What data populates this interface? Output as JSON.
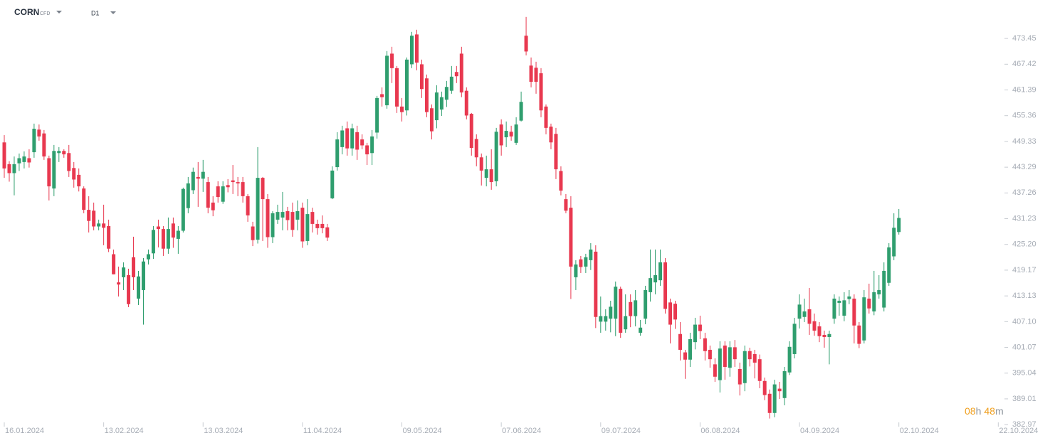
{
  "header": {
    "symbol": "CORN",
    "instrument_type": "CFD",
    "timeframe": "D1"
  },
  "countdown": {
    "hours": "08",
    "hours_unit": "h",
    "minutes": "48",
    "minutes_unit": "m"
  },
  "chart_data": {
    "type": "candlestick",
    "increasing_color": "#2f9e6e",
    "decreasing_color": "#e8384f",
    "xlim": [
      -0.86,
      201.1
    ],
    "xticks": [
      {
        "value": 0,
        "label": "16.01.2024"
      },
      {
        "value": 20,
        "label": "13.02.2024"
      },
      {
        "value": 40,
        "label": "13.03.2024"
      },
      {
        "value": 60,
        "label": "11.04.2024"
      },
      {
        "value": 80,
        "label": "09.05.2024"
      },
      {
        "value": 100,
        "label": "07.06.2024"
      },
      {
        "value": 120,
        "label": "09.07.2024"
      },
      {
        "value": 140,
        "label": "06.08.2024"
      },
      {
        "value": 160,
        "label": "04.09.2024"
      },
      {
        "value": 180,
        "label": "02.10.2024"
      },
      {
        "value": 200,
        "label": "22.10.2024"
      }
    ],
    "ylim": [
      382.5,
      480.8
    ],
    "yticks": [
      {
        "value": 473.45,
        "label": "473.45"
      },
      {
        "value": 467.42,
        "label": "467.42"
      },
      {
        "value": 461.39,
        "label": "461.39"
      },
      {
        "value": 455.36,
        "label": "455.36"
      },
      {
        "value": 449.33,
        "label": "449.33"
      },
      {
        "value": 443.29,
        "label": "443.29"
      },
      {
        "value": 437.26,
        "label": "437.26"
      },
      {
        "value": 431.23,
        "label": "431.23"
      },
      {
        "value": 425.2,
        "label": "425.20"
      },
      {
        "value": 419.17,
        "label": "419.17"
      },
      {
        "value": 413.13,
        "label": "413.13"
      },
      {
        "value": 407.1,
        "label": "407.10"
      },
      {
        "value": 401.07,
        "label": "401.07"
      },
      {
        "value": 395.04,
        "label": "395.04"
      },
      {
        "value": 389.01,
        "label": "389.01"
      },
      {
        "value": 382.97,
        "label": "382.97"
      }
    ],
    "open": [
      449.1,
      444,
      441.9,
      444.2,
      444.5,
      445.4,
      446.8,
      452.1,
      451.2,
      445.4,
      438.3,
      446.6,
      447.1,
      446.6,
      443.1,
      441.5,
      438.3,
      433.3,
      433.1,
      429.4,
      430.1,
      429.5,
      422.9,
      416.3,
      417.5,
      418,
      422.2,
      412.5,
      414.5,
      421.7,
      423.1,
      429.4,
      428.8,
      424.2,
      430.1,
      426.5,
      428.4,
      433.7,
      437.9,
      441,
      440.6,
      439.8,
      435,
      438.8,
      435.2,
      439.1,
      440.2,
      439.8,
      439.8,
      436.5,
      429.4,
      426.3,
      440.8,
      435.8,
      426.9,
      431,
      431.5,
      433,
      432.8,
      431,
      433.8,
      426,
      432.8,
      430,
      430,
      429.2,
      436,
      443.3,
      448,
      452.4,
      447.7,
      451.5,
      449.8,
      448.4,
      446.6,
      451.4,
      460.4,
      457.8,
      469.9,
      466.5,
      457.5,
      456.6,
      467.4,
      474.4,
      467.4,
      464.1,
      457.1,
      454.3,
      456.8,
      459.1,
      461.2,
      465.6,
      469.9,
      461.2,
      455.8,
      449.9,
      445.6,
      440.8,
      442.8,
      440,
      453.3,
      450.3,
      451.6,
      449,
      454.2,
      474.1,
      467.1,
      466.6,
      465.3,
      457.5,
      452.8,
      451.1,
      442.4,
      435.8,
      433.8,
      417.5,
      421.7,
      420,
      421.5,
      423.5,
      407.1,
      407.1,
      407.8,
      407.8,
      414.8,
      405.3,
      411.7,
      408.4,
      404.5,
      407.8,
      414,
      416.3,
      416.8,
      421,
      411.6,
      411.3,
      404.2,
      399.9,
      398.2,
      402.3,
      406.4,
      403.2,
      400.5,
      397.1,
      393.4,
      401.5,
      396.3,
      401.1,
      396,
      392.7,
      400.2,
      399.5,
      398.3,
      393.2,
      390.2,
      385.7,
      391.4,
      389.2,
      395.2,
      399.5,
      407.8,
      408.2,
      410,
      407.2,
      406,
      404,
      403.5,
      407.8,
      411.5,
      408.5,
      412.4,
      412.5,
      406.2,
      402.7,
      412.5,
      409.5,
      413.5,
      410.4,
      416.2,
      422.4,
      428.1
    ],
    "high": [
      450.8,
      444.7,
      445.8,
      446.5,
      447,
      447.5,
      453.5,
      453.3,
      452,
      446,
      448.5,
      448,
      447.5,
      448.5,
      444.5,
      443,
      438.8,
      436.5,
      435,
      431,
      434.5,
      431,
      424,
      420,
      421,
      419.5,
      427,
      419,
      422,
      424,
      429.5,
      431,
      429.5,
      431.5,
      431.5,
      429.5,
      438.5,
      441,
      443.2,
      444.5,
      445,
      441,
      436.5,
      440,
      440,
      440.5,
      443.8,
      441,
      441,
      437,
      430.5,
      448,
      441,
      437,
      433,
      434.5,
      437.5,
      434,
      435,
      435.5,
      435,
      435.8,
      433.8,
      431,
      432,
      430,
      443.5,
      451.5,
      453,
      454,
      453.5,
      453,
      451,
      449,
      452,
      460,
      462,
      470.5,
      471.5,
      467,
      459.5,
      469,
      475,
      475.5,
      468.5,
      465,
      458,
      462.5,
      461,
      463.5,
      467,
      467,
      471.5,
      462,
      456,
      451,
      446.5,
      446,
      447.5,
      452.5,
      454.5,
      454,
      453,
      455,
      461,
      478.5,
      469,
      468,
      466.5,
      458,
      453.5,
      452.5,
      443.5,
      437,
      436.5,
      421.5,
      422.5,
      423,
      425.5,
      425,
      413,
      410,
      412,
      416.5,
      415.3,
      413.5,
      413.5,
      414.5,
      407.5,
      415.5,
      424,
      424,
      424,
      422,
      412.5,
      412,
      407,
      400.5,
      404.5,
      408,
      408.5,
      404.5,
      401.5,
      398.5,
      402.5,
      402.5,
      402.5,
      402.8,
      397.5,
      401.5,
      401,
      400.5,
      399.4,
      394,
      391.2,
      393.5,
      393,
      396.5,
      402.5,
      408,
      413.5,
      412.5,
      415,
      409,
      407,
      405,
      405,
      413.5,
      413,
      414,
      414.5,
      413.5,
      407,
      414.5,
      416,
      419,
      418,
      421,
      425.5,
      432.5,
      433.5
    ],
    "low": [
      440.8,
      439.9,
      436.7,
      442.4,
      443,
      443.2,
      445.5,
      449.5,
      445,
      435.5,
      436.5,
      444.5,
      445.5,
      441,
      438.5,
      437.6,
      432.5,
      428,
      428.5,
      428.5,
      425,
      423.4,
      418.2,
      413,
      414.5,
      410.5,
      414.5,
      411,
      406.4,
      420.5,
      421.8,
      424.5,
      422.5,
      423,
      424.4,
      423,
      428,
      432.5,
      437,
      434,
      437.5,
      432.5,
      431.8,
      435,
      434.7,
      437.4,
      437,
      436.5,
      435,
      430.5,
      424.8,
      425.4,
      426,
      424.4,
      425.5,
      430,
      428.5,
      428.5,
      427,
      428.5,
      424.4,
      425,
      428,
      427.5,
      427.8,
      426,
      435.8,
      442.5,
      446.3,
      446,
      446,
      445,
      447.5,
      443.8,
      443.8,
      450,
      457.5,
      457,
      463,
      456,
      454,
      455.4,
      466.5,
      466,
      459.5,
      455,
      449.8,
      452.4,
      455.3,
      457.4,
      460.5,
      463,
      459.7,
      454.5,
      446,
      443.5,
      439,
      438.8,
      438,
      438.8,
      446,
      448,
      449.5,
      448.5,
      454,
      469.5,
      462,
      460.5,
      455,
      451,
      447.5,
      440.5,
      436.7,
      432.5,
      412.4,
      414.5,
      418.5,
      418.5,
      419.2,
      405.6,
      404.5,
      405,
      404.6,
      403.7,
      403.3,
      404.5,
      405.8,
      406,
      403.8,
      406.5,
      411.8,
      413.5,
      415.5,
      409,
      402,
      405.4,
      398,
      393.7,
      396.5,
      400.6,
      403,
      398,
      396.3,
      393,
      390.5,
      393.5,
      394.2,
      396.5,
      389.8,
      390.8,
      396.6,
      393.8,
      391.5,
      388.7,
      384.4,
      384.7,
      389,
      387.5,
      394.6,
      398.5,
      405.5,
      407,
      404,
      403.8,
      402.3,
      401,
      397.1,
      406.6,
      408.5,
      407.2,
      411.2,
      402,
      400.9,
      402,
      409,
      408.6,
      412.5,
      409.5,
      415.5,
      421.5,
      427.5
    ],
    "close": [
      443,
      441.9,
      444,
      445.4,
      445.8,
      444.4,
      452.3,
      450.5,
      445.8,
      438.8,
      447.1,
      447.1,
      446.3,
      442.4,
      440.4,
      438.8,
      433.3,
      430.7,
      429.4,
      430.1,
      429.1,
      424.2,
      418.2,
      415.8,
      419.8,
      411.2,
      417.5,
      417.7,
      421.2,
      422.9,
      428.6,
      428.8,
      424.2,
      428.8,
      426.8,
      428.4,
      438.2,
      439.5,
      442.2,
      440.6,
      442.2,
      433.8,
      433.2,
      436.3,
      438.8,
      438.6,
      439.8,
      439.5,
      436.5,
      432,
      426.2,
      440.8,
      435.8,
      426.9,
      432.5,
      432.8,
      432.8,
      430.9,
      428.6,
      433,
      425.9,
      432.3,
      430,
      429,
      429,
      426.8,
      442.5,
      449.8,
      451.9,
      447.7,
      452.4,
      447.4,
      448.4,
      446.3,
      450.5,
      459.5,
      459.7,
      469.4,
      466.5,
      457.5,
      456.2,
      468.5,
      474.1,
      467.8,
      461.6,
      456.2,
      451.7,
      460.8,
      459.7,
      462.1,
      464.5,
      464.6,
      460.8,
      455.4,
      447.8,
      445.6,
      442.5,
      442.8,
      439.8,
      451.6,
      448.4,
      451.8,
      450.5,
      453.3,
      458.6,
      470.4,
      463.3,
      463.3,
      456.6,
      452.5,
      449.1,
      442.8,
      437.8,
      433.1,
      420,
      420.5,
      419.9,
      422.2,
      424,
      408.2,
      408.4,
      408.4,
      410.6,
      415.3,
      404.5,
      408.4,
      408.4,
      412.1,
      405.7,
      414.5,
      417.3,
      418,
      421,
      410.1,
      406.4,
      407.6,
      400.5,
      398.2,
      403,
      406.4,
      404.9,
      400.2,
      398.3,
      394.2,
      400.8,
      396.5,
      401.1,
      398.3,
      392.4,
      400.2,
      398.3,
      397.5,
      393.2,
      389.9,
      385.7,
      392.4,
      390.8,
      395.5,
      401.2,
      406.6,
      411.1,
      409.5,
      406.6,
      405,
      403.7,
      403.5,
      404.2,
      412.5,
      412,
      412.1,
      413,
      406.2,
      401.9,
      412.8,
      410.2,
      414,
      414.5,
      419,
      424.5,
      429.1,
      431.4
    ]
  }
}
